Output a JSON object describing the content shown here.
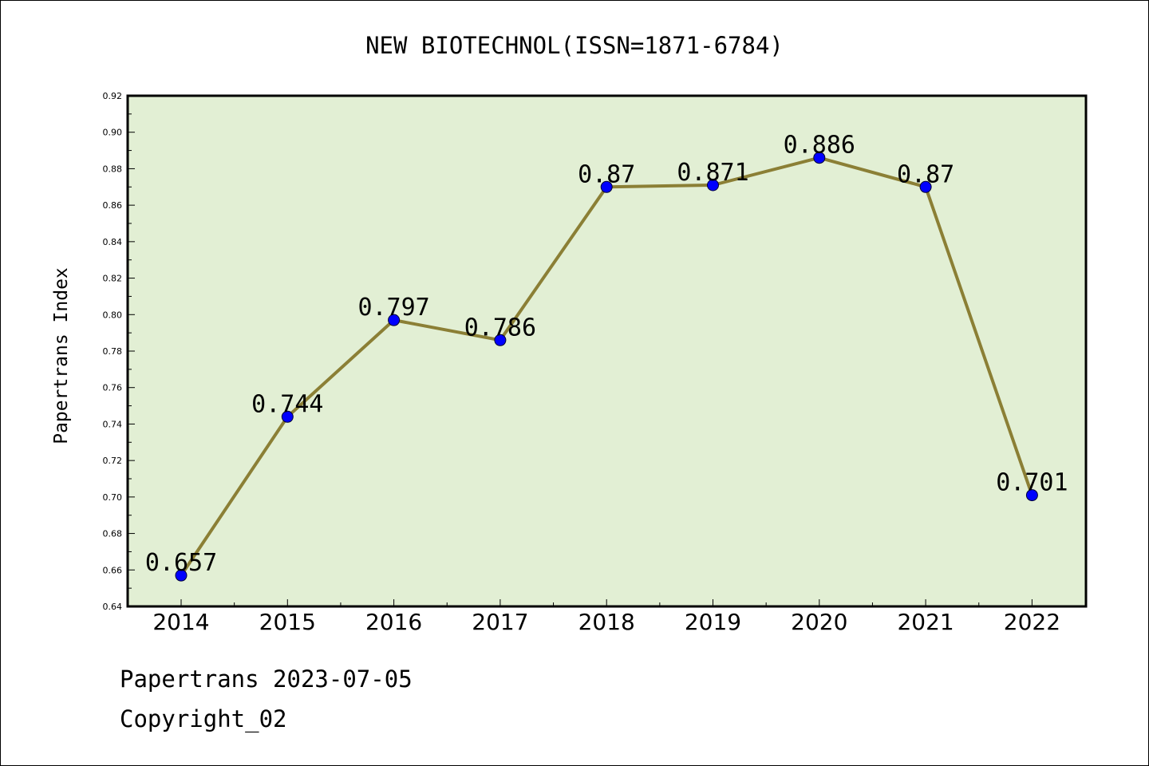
{
  "chart_data": {
    "type": "line",
    "title": "NEW BIOTECHNOL(ISSN=1871-6784)",
    "xlabel": "",
    "ylabel": "Papertrans Index",
    "categories": [
      "2014",
      "2015",
      "2016",
      "2017",
      "2018",
      "2019",
      "2020",
      "2021",
      "2022"
    ],
    "series": [
      {
        "values": [
          0.657,
          0.744,
          0.797,
          0.786,
          0.87,
          0.871,
          0.886,
          0.87,
          0.701
        ],
        "labels": [
          "0.657",
          "0.744",
          "0.797",
          "0.786",
          "0.87",
          "0.871",
          "0.886",
          "0.87",
          "0.701"
        ]
      }
    ],
    "ylim": [
      0.64,
      0.92
    ],
    "yticks": [
      "0.64",
      "0.66",
      "0.68",
      "0.70",
      "0.72",
      "0.74",
      "0.76",
      "0.78",
      "0.80",
      "0.82",
      "0.84",
      "0.86",
      "0.88",
      "0.90",
      "0.92"
    ],
    "grid": false,
    "colors": {
      "plot_background": "#e2efd4",
      "line": "#8b7f35",
      "marker": "#0000ff"
    }
  },
  "footer": {
    "line1": "Papertrans 2023-07-05",
    "line2": "Copyright_02"
  }
}
